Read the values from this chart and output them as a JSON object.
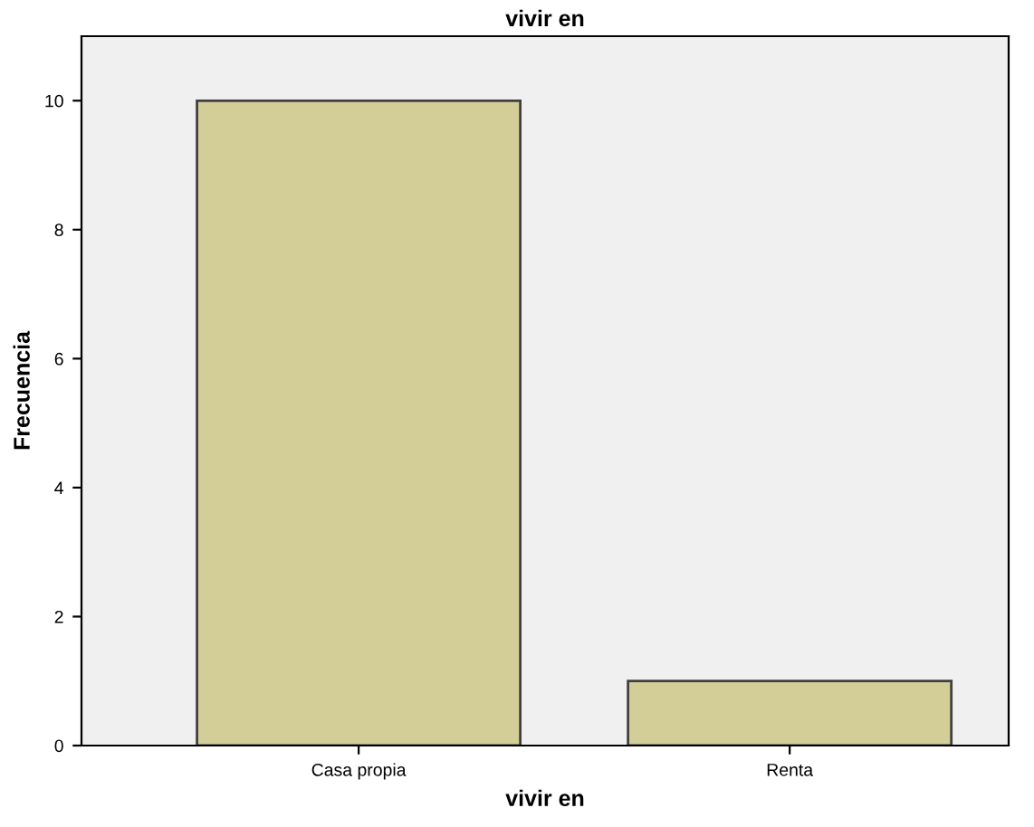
{
  "chart_data": {
    "type": "bar",
    "title": "vivir en",
    "xlabel": "vivir en",
    "ylabel": "Frecuencia",
    "categories": [
      "Casa propia",
      "Renta"
    ],
    "values": [
      10,
      1
    ],
    "color": "#d3ce97",
    "ylim": [
      0,
      11
    ],
    "yticks": [
      0,
      2,
      4,
      6,
      8,
      10
    ],
    "grid": false,
    "legend": false
  }
}
